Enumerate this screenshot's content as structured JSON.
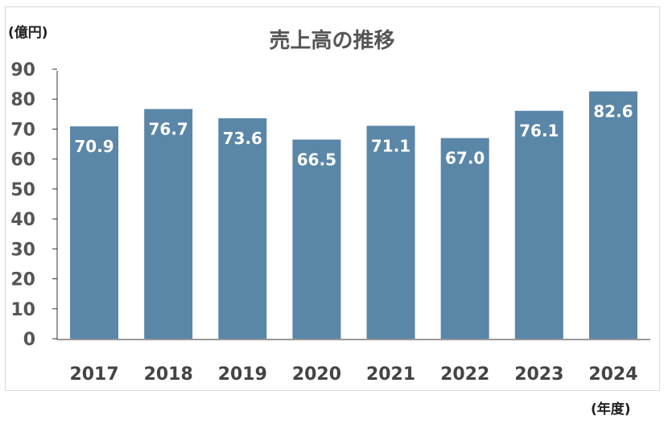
{
  "chart_data": {
    "type": "bar",
    "title": "売上高の推移",
    "ylabel": "(億円)",
    "xlabel": "(年度)",
    "categories": [
      "2017",
      "2018",
      "2019",
      "2020",
      "2021",
      "2022",
      "2023",
      "2024"
    ],
    "values": [
      70.9,
      76.7,
      73.6,
      66.5,
      71.1,
      67.0,
      76.1,
      82.6
    ],
    "value_labels": [
      "70.9",
      "76.7",
      "73.6",
      "66.5",
      "71.1",
      "67.0",
      "76.1",
      "82.6"
    ],
    "yticks": [
      "0",
      "10",
      "20",
      "30",
      "40",
      "50",
      "60",
      "70",
      "80",
      "90"
    ],
    "ylim": [
      0,
      90
    ],
    "grid": false,
    "bar_color": "#5a86a8"
  }
}
